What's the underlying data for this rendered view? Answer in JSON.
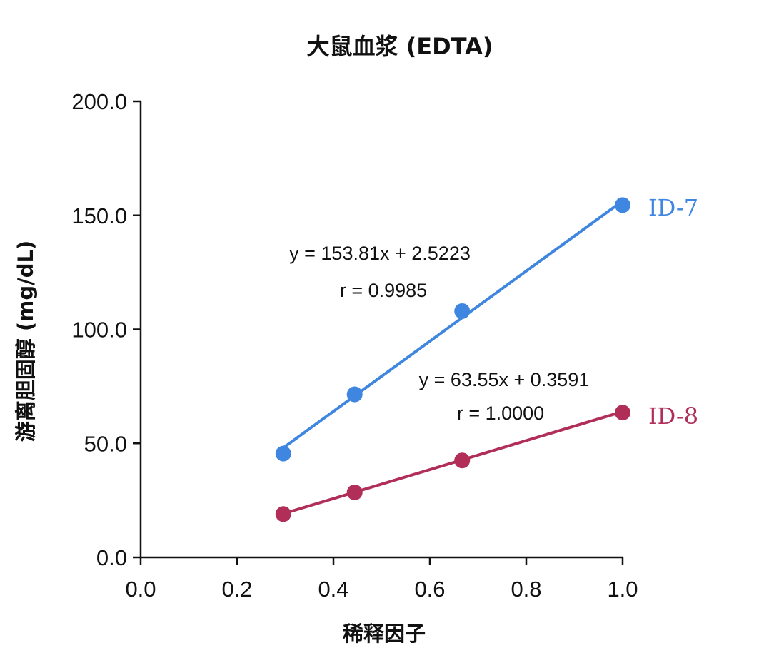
{
  "chart_data": {
    "type": "scatter",
    "title": "大鼠血浆 (EDTA)",
    "xlabel": "稀释因子",
    "ylabel": "游离胆固醇 (mg/dL)",
    "xlim": [
      0.0,
      1.0
    ],
    "ylim": [
      0.0,
      200.0
    ],
    "x_ticks": [
      "0.0",
      "0.2",
      "0.4",
      "0.6",
      "0.8",
      "1.0"
    ],
    "y_ticks": [
      "0.0",
      "50.0",
      "100.0",
      "150.0",
      "200.0"
    ],
    "grid": false,
    "series": [
      {
        "name": "ID-7",
        "color": "#3f86e0",
        "x": [
          0.296,
          0.444,
          0.667,
          1.0
        ],
        "y": [
          45.5,
          71.5,
          108.0,
          154.5
        ],
        "fit": {
          "slope": 153.81,
          "intercept": 2.5223
        },
        "equation": "y = 153.81x + 2.5223",
        "r_text": "r = 0.9985"
      },
      {
        "name": "ID-8",
        "color": "#b02e58",
        "x": [
          0.296,
          0.444,
          0.667,
          1.0
        ],
        "y": [
          19.0,
          28.5,
          42.5,
          63.5
        ],
        "fit": {
          "slope": 63.55,
          "intercept": 0.3591
        },
        "equation": "y = 63.55x + 0.3591",
        "r_text": "r = 1.0000"
      }
    ]
  }
}
